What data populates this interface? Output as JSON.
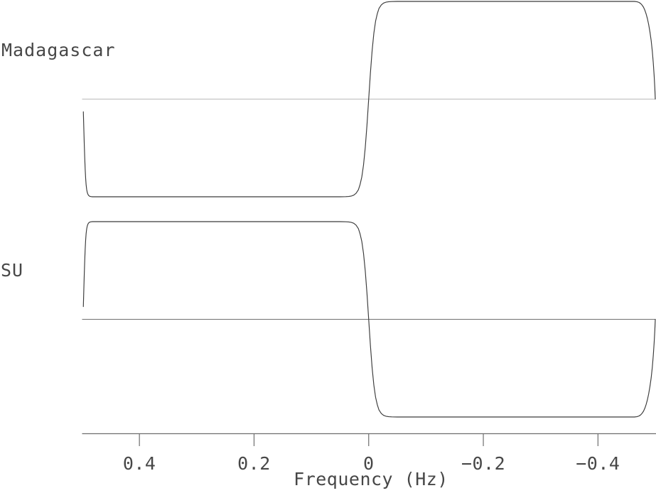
{
  "chart_data": {
    "type": "line",
    "title": "",
    "xlabel": "Frequency (Hz)",
    "grid": false,
    "legend": "none",
    "x_axis": {
      "label": "Frequency (Hz)",
      "range": [
        0.5,
        -0.5
      ],
      "reversed": true,
      "ticks": [
        {
          "value": 0.4,
          "label": "0.4"
        },
        {
          "value": 0.2,
          "label": "0.2"
        },
        {
          "value": 0.0,
          "label": "0"
        },
        {
          "value": -0.2,
          "label": "−0.2"
        },
        {
          "value": -0.4,
          "label": "−0.4"
        }
      ]
    },
    "y_axis": {
      "range_per_panel": [
        -1.1,
        1.1
      ],
      "baseline": 0,
      "ticks_visible": false
    },
    "colors": {
      "curve": "#3a3a3a",
      "axis": "#6e6e6e",
      "text": "#474747",
      "background": "#ffffff"
    },
    "series": [
      {
        "name": "Madagascar",
        "panel": 0,
        "baseline_color": "#b9b9b9",
        "points": [
          [
            0.4978,
            -0.13
          ],
          [
            0.497,
            -0.3
          ],
          [
            0.4962,
            -0.46
          ],
          [
            0.4954,
            -0.6
          ],
          [
            0.4946,
            -0.72
          ],
          [
            0.4938,
            -0.81
          ],
          [
            0.493,
            -0.875
          ],
          [
            0.492,
            -0.925
          ],
          [
            0.491,
            -0.955
          ],
          [
            0.4898,
            -0.975
          ],
          [
            0.4885,
            -0.987
          ],
          [
            0.487,
            -0.994
          ],
          [
            0.485,
            -0.998
          ],
          [
            0.482,
            -1
          ],
          [
            0.45,
            -1
          ],
          [
            0.4,
            -1
          ],
          [
            0.3,
            -1
          ],
          [
            0.2,
            -1
          ],
          [
            0.1,
            -1
          ],
          [
            0.05,
            -1
          ],
          [
            0.04,
            -0.999
          ],
          [
            0.035,
            -0.997
          ],
          [
            0.03,
            -0.992
          ],
          [
            0.026,
            -0.983
          ],
          [
            0.022,
            -0.964
          ],
          [
            0.018,
            -0.929
          ],
          [
            0.015,
            -0.874
          ],
          [
            0.012,
            -0.797
          ],
          [
            0.009,
            -0.674
          ],
          [
            0.006,
            -0.497
          ],
          [
            0.003,
            -0.267
          ],
          [
            0,
            0
          ],
          [
            -0.003,
            0.267
          ],
          [
            -0.006,
            0.497
          ],
          [
            -0.009,
            0.674
          ],
          [
            -0.012,
            0.797
          ],
          [
            -0.015,
            0.874
          ],
          [
            -0.018,
            0.929
          ],
          [
            -0.022,
            0.964
          ],
          [
            -0.026,
            0.983
          ],
          [
            -0.03,
            0.992
          ],
          [
            -0.035,
            0.997
          ],
          [
            -0.04,
            0.999
          ],
          [
            -0.05,
            1
          ],
          [
            -0.1,
            1
          ],
          [
            -0.2,
            1
          ],
          [
            -0.3,
            1
          ],
          [
            -0.4,
            1
          ],
          [
            -0.45,
            1
          ],
          [
            -0.4635,
            1
          ],
          [
            -0.468,
            0.997
          ],
          [
            -0.4715,
            0.99
          ],
          [
            -0.4745,
            0.978
          ],
          [
            -0.477,
            0.962
          ],
          [
            -0.4795,
            0.94
          ],
          [
            -0.4818,
            0.91
          ],
          [
            -0.484,
            0.872
          ],
          [
            -0.4862,
            0.825
          ],
          [
            -0.4884,
            0.765
          ],
          [
            -0.4906,
            0.69
          ],
          [
            -0.4928,
            0.6
          ],
          [
            -0.4948,
            0.49
          ],
          [
            -0.4965,
            0.37
          ],
          [
            -0.498,
            0.24
          ],
          [
            -0.4992,
            0.11
          ],
          [
            -0.5,
            0
          ]
        ]
      },
      {
        "name": "SU",
        "panel": 1,
        "baseline_color": "#707070",
        "points": [
          [
            0.4978,
            0.13
          ],
          [
            0.497,
            0.3
          ],
          [
            0.4962,
            0.46
          ],
          [
            0.4954,
            0.6
          ],
          [
            0.4946,
            0.72
          ],
          [
            0.4938,
            0.81
          ],
          [
            0.493,
            0.875
          ],
          [
            0.492,
            0.925
          ],
          [
            0.491,
            0.955
          ],
          [
            0.4898,
            0.975
          ],
          [
            0.4885,
            0.987
          ],
          [
            0.487,
            0.994
          ],
          [
            0.485,
            0.998
          ],
          [
            0.482,
            1
          ],
          [
            0.45,
            1
          ],
          [
            0.4,
            1
          ],
          [
            0.3,
            1
          ],
          [
            0.2,
            1
          ],
          [
            0.1,
            1
          ],
          [
            0.05,
            1
          ],
          [
            0.04,
            0.999
          ],
          [
            0.035,
            0.997
          ],
          [
            0.03,
            0.992
          ],
          [
            0.026,
            0.983
          ],
          [
            0.022,
            0.964
          ],
          [
            0.018,
            0.929
          ],
          [
            0.015,
            0.874
          ],
          [
            0.012,
            0.797
          ],
          [
            0.009,
            0.674
          ],
          [
            0.006,
            0.497
          ],
          [
            0.003,
            0.267
          ],
          [
            0,
            0
          ],
          [
            -0.003,
            -0.267
          ],
          [
            -0.006,
            -0.497
          ],
          [
            -0.009,
            -0.674
          ],
          [
            -0.012,
            -0.797
          ],
          [
            -0.015,
            -0.874
          ],
          [
            -0.018,
            -0.929
          ],
          [
            -0.022,
            -0.964
          ],
          [
            -0.026,
            -0.983
          ],
          [
            -0.03,
            -0.992
          ],
          [
            -0.035,
            -0.997
          ],
          [
            -0.04,
            -0.999
          ],
          [
            -0.05,
            -1
          ],
          [
            -0.1,
            -1
          ],
          [
            -0.2,
            -1
          ],
          [
            -0.3,
            -1
          ],
          [
            -0.4,
            -1
          ],
          [
            -0.45,
            -1
          ],
          [
            -0.4635,
            -1
          ],
          [
            -0.468,
            -0.997
          ],
          [
            -0.4715,
            -0.99
          ],
          [
            -0.4745,
            -0.978
          ],
          [
            -0.477,
            -0.962
          ],
          [
            -0.4795,
            -0.94
          ],
          [
            -0.4818,
            -0.91
          ],
          [
            -0.484,
            -0.872
          ],
          [
            -0.4862,
            -0.825
          ],
          [
            -0.4884,
            -0.765
          ],
          [
            -0.4906,
            -0.69
          ],
          [
            -0.4928,
            -0.6
          ],
          [
            -0.4948,
            -0.49
          ],
          [
            -0.4965,
            -0.37
          ],
          [
            -0.498,
            -0.24
          ],
          [
            -0.4992,
            -0.11
          ],
          [
            -0.5,
            0
          ]
        ]
      }
    ]
  }
}
